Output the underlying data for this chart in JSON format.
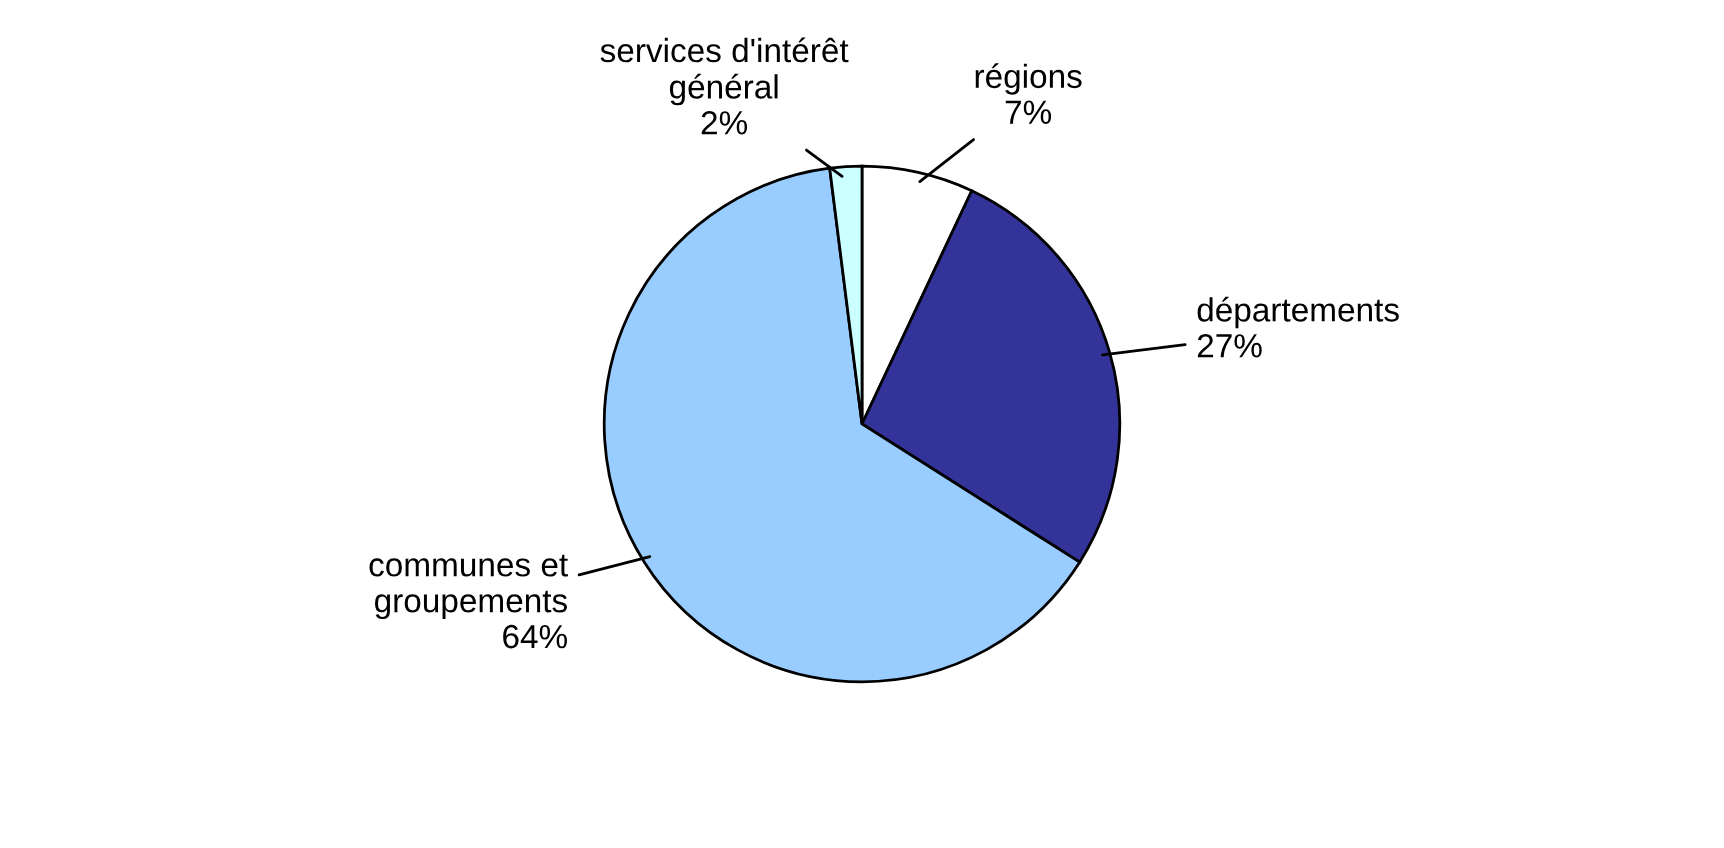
{
  "chart_data": {
    "type": "pie",
    "categories": [
      "régions",
      "départements",
      "communes et\ngroupements",
      "services d'intérêt\ngénéral"
    ],
    "values": [
      7,
      27,
      64,
      2
    ],
    "value_labels": [
      "7%",
      "27%",
      "64%",
      "2%"
    ],
    "colors": [
      "#ffffff",
      "#333399",
      "#99ccff",
      "#ccffff"
    ],
    "legend": false
  }
}
